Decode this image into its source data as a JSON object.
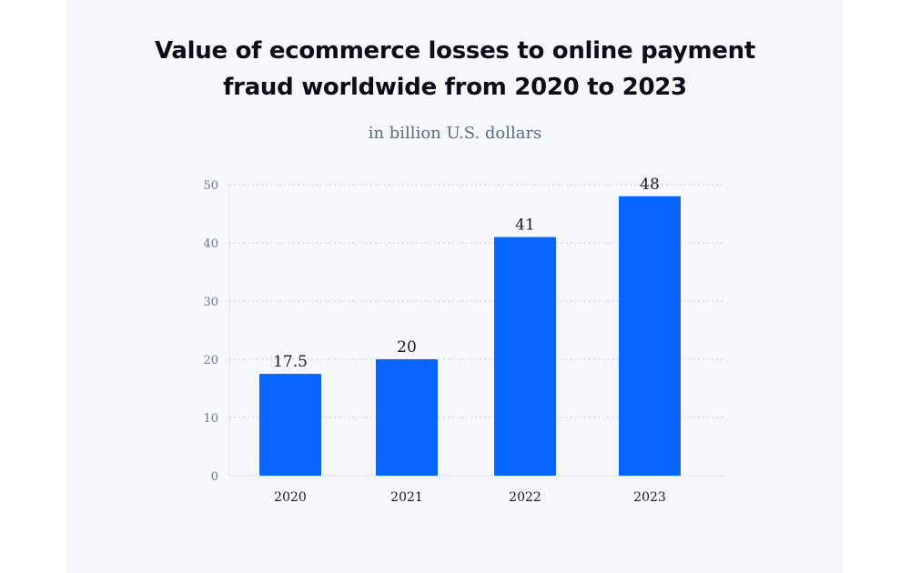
{
  "chart_data": {
    "type": "bar",
    "title": "Value of ecommerce losses to online payment fraud worldwide from 2020 to 2023",
    "title_lines": [
      "Value of ecommerce losses to online payment",
      "fraud worldwide from 2020 to 2023"
    ],
    "subtitle": "in billion U.S. dollars",
    "categories": [
      "2020",
      "2021",
      "2022",
      "2023"
    ],
    "values": [
      17.5,
      20,
      41,
      48
    ],
    "data_labels": [
      "17.5",
      "20",
      "41",
      "48"
    ],
    "xlabel": "",
    "ylabel": "",
    "ylim": [
      0,
      50
    ],
    "yticks": [
      0,
      10,
      20,
      30,
      40,
      50
    ],
    "grid": true,
    "bar_color": "#0866ff"
  }
}
